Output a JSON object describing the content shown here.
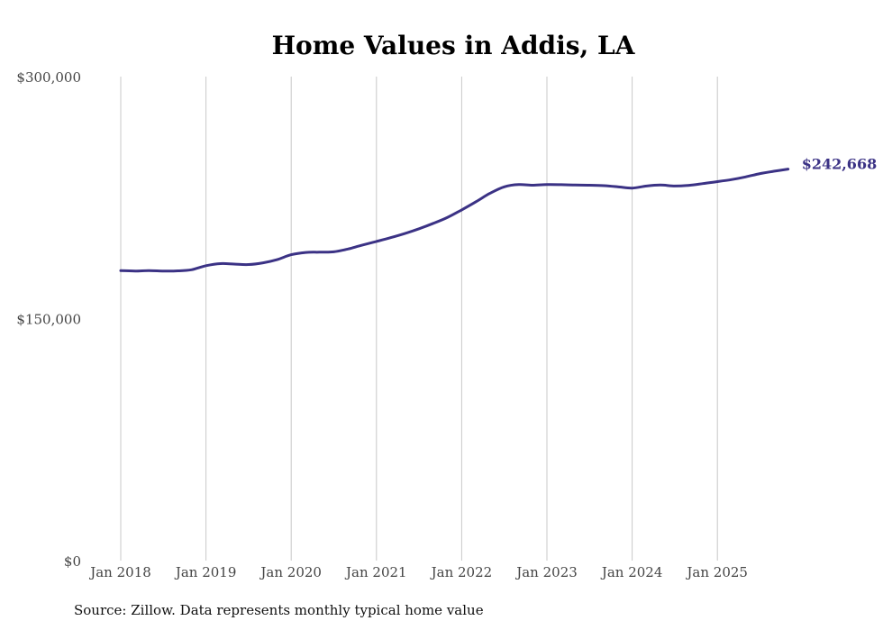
{
  "chart_data": {
    "type": "line",
    "title": "Home Values in Addis, LA",
    "xlabel": "",
    "ylabel": "",
    "ylim": [
      0,
      300000
    ],
    "xlim": [
      2017.95,
      2025.95
    ],
    "y_ticks": [
      {
        "value": 0,
        "label": "$0"
      },
      {
        "value": 150000,
        "label": "$150,000"
      },
      {
        "value": 300000,
        "label": "$300,000"
      }
    ],
    "x_ticks": [
      {
        "value": 2018,
        "label": "Jan 2018"
      },
      {
        "value": 2019,
        "label": "Jan 2019"
      },
      {
        "value": 2020,
        "label": "Jan 2020"
      },
      {
        "value": 2021,
        "label": "Jan 2021"
      },
      {
        "value": 2022,
        "label": "Jan 2022"
      },
      {
        "value": 2023,
        "label": "Jan 2023"
      },
      {
        "value": 2024,
        "label": "Jan 2024"
      },
      {
        "value": 2025,
        "label": "Jan 2025"
      }
    ],
    "grid": "vertical",
    "series": [
      {
        "name": "Typical home value",
        "color": "#3b3285",
        "x": [
          2018.0,
          2018.17,
          2018.33,
          2018.5,
          2018.67,
          2018.83,
          2019.0,
          2019.17,
          2019.33,
          2019.5,
          2019.67,
          2019.83,
          2020.0,
          2020.17,
          2020.33,
          2020.5,
          2020.67,
          2020.83,
          2021.0,
          2021.17,
          2021.33,
          2021.5,
          2021.67,
          2021.83,
          2022.0,
          2022.17,
          2022.33,
          2022.5,
          2022.67,
          2022.83,
          2023.0,
          2023.17,
          2023.33,
          2023.5,
          2023.67,
          2023.83,
          2024.0,
          2024.17,
          2024.33,
          2024.5,
          2024.67,
          2024.83,
          2025.0,
          2025.17,
          2025.33,
          2025.5,
          2025.67,
          2025.83
        ],
        "values": [
          179700,
          179500,
          179800,
          179500,
          179600,
          180300,
          182800,
          184100,
          183800,
          183500,
          184600,
          186500,
          189600,
          191000,
          191200,
          191400,
          193200,
          195500,
          197800,
          200200,
          202700,
          205700,
          209100,
          212600,
          217400,
          222500,
          227600,
          231700,
          233100,
          232700,
          233100,
          233000,
          232800,
          232700,
          232400,
          231700,
          230900,
          232200,
          232800,
          232200,
          232600,
          233700,
          234900,
          236200,
          237800,
          239900,
          241400,
          242668
        ]
      }
    ],
    "end_label": "$242,668"
  },
  "footer": {
    "source": "Source: Zillow. Data represents monthly typical home value"
  }
}
